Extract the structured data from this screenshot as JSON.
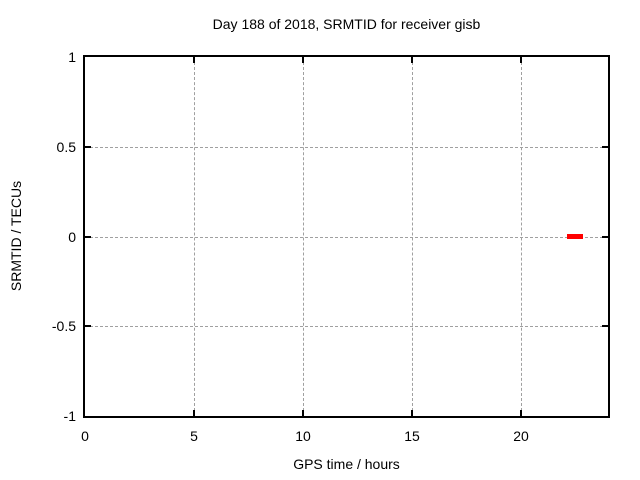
{
  "chart_data": {
    "type": "scatter",
    "title": "Day 188 of 2018, SRMTID for receiver gisb",
    "xlabel": "GPS time / hours",
    "ylabel": "SRMTID / TECUs",
    "xlim": [
      0,
      24
    ],
    "ylim": [
      -1,
      1
    ],
    "grid": true,
    "legend": "none",
    "xticks": [
      {
        "value": 0,
        "label": "0"
      },
      {
        "value": 5,
        "label": "5"
      },
      {
        "value": 10,
        "label": "10"
      },
      {
        "value": 15,
        "label": "15"
      },
      {
        "value": 20,
        "label": "20"
      }
    ],
    "yticks": [
      {
        "value": -1,
        "label": "-1"
      },
      {
        "value": -0.5,
        "label": "-0.5"
      },
      {
        "value": 0,
        "label": "0"
      },
      {
        "value": 0.5,
        "label": "0.5"
      },
      {
        "value": 1,
        "label": "1"
      }
    ],
    "series": [
      {
        "marker": "filled-square",
        "color": "#ff0000",
        "points": [
          {
            "x": 22.25,
            "y": 0.0
          },
          {
            "x": 22.32,
            "y": 0.0
          },
          {
            "x": 22.45,
            "y": 0.0
          },
          {
            "x": 22.52,
            "y": 0.0
          },
          {
            "x": 22.65,
            "y": 0.0
          },
          {
            "x": 22.72,
            "y": 0.0
          }
        ]
      }
    ]
  },
  "colors": {
    "marker": "#ff0000",
    "grid": "#a0a0a0",
    "axis": "#000000",
    "text": "#000000",
    "background": "#ffffff"
  }
}
